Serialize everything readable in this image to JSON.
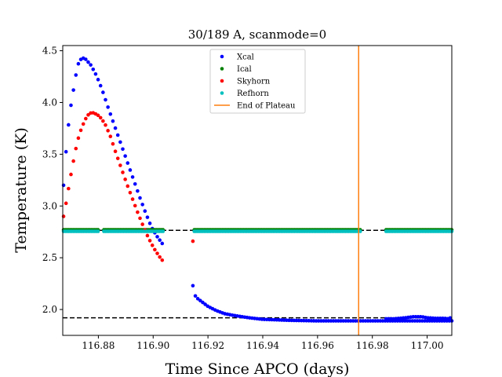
{
  "chart_data": {
    "type": "scatter",
    "title": "30/189 A, scanmode=0",
    "xlabel": "Time Since APCO (days)",
    "ylabel": "Temperature (K)",
    "xlim": [
      116.867,
      117.009
    ],
    "ylim": [
      1.75,
      4.55
    ],
    "x_ticks": [
      116.88,
      116.9,
      116.92,
      116.94,
      116.96,
      116.98,
      117.0
    ],
    "x_tick_labels": [
      "116.88",
      "116.90",
      "116.92",
      "116.94",
      "116.96",
      "116.98",
      "117.00"
    ],
    "y_ticks": [
      2.0,
      2.5,
      3.0,
      3.5,
      4.0,
      4.5
    ],
    "y_tick_labels": [
      "2.0",
      "2.5",
      "3.0",
      "3.5",
      "4.0",
      "4.5"
    ],
    "grid": false,
    "legend_position": "top-center",
    "series": [
      {
        "name": "Xcal",
        "color": "#0000ff",
        "segments": [
          {
            "x0": 116.8673,
            "x1": 116.9038,
            "points": [
              [
                116.8673,
                3.2
              ],
              [
                116.8683,
                3.56
              ],
              [
                116.8693,
                3.84
              ],
              [
                116.8703,
                4.03
              ],
              [
                116.8713,
                4.18
              ],
              [
                116.8723,
                4.35
              ],
              [
                116.8733,
                4.41
              ],
              [
                116.8743,
                4.43
              ],
              [
                116.8753,
                4.42
              ],
              [
                116.8773,
                4.36
              ],
              [
                116.8793,
                4.26
              ],
              [
                116.8813,
                4.13
              ],
              [
                116.8833,
                3.97
              ],
              [
                116.8853,
                3.82
              ],
              [
                116.8873,
                3.67
              ],
              [
                116.8893,
                3.52
              ],
              [
                116.8913,
                3.37
              ],
              [
                116.8933,
                3.22
              ],
              [
                116.8953,
                3.07
              ],
              [
                116.8973,
                2.93
              ],
              [
                116.8993,
                2.8
              ],
              [
                116.9013,
                2.71
              ],
              [
                116.9038,
                2.62
              ]
            ]
          },
          {
            "x0": 116.9145,
            "x1": 117.009,
            "points": [
              [
                116.9145,
                2.23
              ],
              [
                116.9155,
                2.12
              ],
              [
                116.9175,
                2.08
              ],
              [
                116.92,
                2.03
              ],
              [
                116.923,
                1.99
              ],
              [
                116.926,
                1.96
              ],
              [
                116.93,
                1.94
              ],
              [
                116.935,
                1.92
              ],
              [
                116.94,
                1.905
              ],
              [
                116.95,
                1.895
              ],
              [
                116.96,
                1.89
              ],
              [
                116.97,
                1.89
              ],
              [
                116.975,
                1.89
              ]
            ]
          },
          {
            "x0": 116.985,
            "x1": 117.009,
            "points": [
              [
                116.985,
                1.91
              ],
              [
                116.988,
                1.91
              ],
              [
                116.992,
                1.92
              ],
              [
                116.995,
                1.93
              ],
              [
                116.998,
                1.93
              ],
              [
                117.0,
                1.92
              ],
              [
                117.003,
                1.915
              ],
              [
                117.006,
                1.915
              ],
              [
                117.008,
                1.91
              ],
              [
                117.009,
                1.93
              ]
            ]
          }
        ]
      },
      {
        "name": "Ical",
        "color": "#008000",
        "segments": [
          {
            "x0": 116.8673,
            "x1": 116.88,
            "points": [
              [
                116.8673,
                2.77
              ],
              [
                116.88,
                2.77
              ]
            ]
          },
          {
            "x0": 116.882,
            "x1": 116.904,
            "points": [
              [
                116.882,
                2.77
              ],
              [
                116.904,
                2.77
              ]
            ]
          },
          {
            "x0": 116.915,
            "x1": 116.976,
            "points": [
              [
                116.915,
                2.77
              ],
              [
                116.976,
                2.77
              ]
            ]
          },
          {
            "x0": 116.985,
            "x1": 117.009,
            "points": [
              [
                116.985,
                2.77
              ],
              [
                117.009,
                2.77
              ]
            ]
          }
        ]
      },
      {
        "name": "Skyhorn",
        "color": "#ff0000",
        "segments": [
          {
            "x0": 116.8673,
            "x1": 116.9038,
            "points": [
              [
                116.8673,
                2.9
              ],
              [
                116.8683,
                3.04
              ],
              [
                116.8693,
                3.2
              ],
              [
                116.8703,
                3.35
              ],
              [
                116.8713,
                3.49
              ],
              [
                116.8723,
                3.62
              ],
              [
                116.8733,
                3.71
              ],
              [
                116.8743,
                3.78
              ],
              [
                116.8753,
                3.84
              ],
              [
                116.8763,
                3.88
              ],
              [
                116.8773,
                3.9
              ],
              [
                116.8783,
                3.9
              ],
              [
                116.8803,
                3.87
              ],
              [
                116.8823,
                3.8
              ],
              [
                116.8843,
                3.68
              ],
              [
                116.8863,
                3.52
              ],
              [
                116.8883,
                3.37
              ],
              [
                116.8903,
                3.22
              ],
              [
                116.8923,
                3.08
              ],
              [
                116.8943,
                2.94
              ],
              [
                116.8963,
                2.81
              ],
              [
                116.8983,
                2.69
              ],
              [
                116.9003,
                2.59
              ],
              [
                116.9023,
                2.51
              ],
              [
                116.9038,
                2.46
              ]
            ]
          },
          {
            "x0": 116.9145,
            "x1": 116.9145,
            "points": [
              [
                116.9145,
                2.66
              ]
            ]
          }
        ]
      },
      {
        "name": "Refhorn",
        "color": "#00bfbf",
        "segments": [
          {
            "x0": 116.8673,
            "x1": 116.88,
            "points": [
              [
                116.8673,
                2.755
              ],
              [
                116.88,
                2.755
              ]
            ]
          },
          {
            "x0": 116.882,
            "x1": 116.904,
            "points": [
              [
                116.882,
                2.755
              ],
              [
                116.904,
                2.755
              ]
            ]
          },
          {
            "x0": 116.915,
            "x1": 116.976,
            "points": [
              [
                116.915,
                2.755
              ],
              [
                116.976,
                2.755
              ]
            ]
          },
          {
            "x0": 116.985,
            "x1": 117.009,
            "points": [
              [
                116.985,
                2.755
              ],
              [
                117.009,
                2.755
              ]
            ]
          }
        ]
      }
    ],
    "end_of_plateau": {
      "name": "End of Plateau",
      "x": 116.975,
      "color": "#ff7f0e"
    },
    "reference_lines": [
      {
        "y": 2.765,
        "x0": 116.867,
        "x1": 117.009,
        "color": "#000000",
        "style": "dashed"
      },
      {
        "y": 1.92,
        "x0": 116.867,
        "x1": 117.009,
        "color": "#000000",
        "style": "dashed"
      }
    ]
  }
}
